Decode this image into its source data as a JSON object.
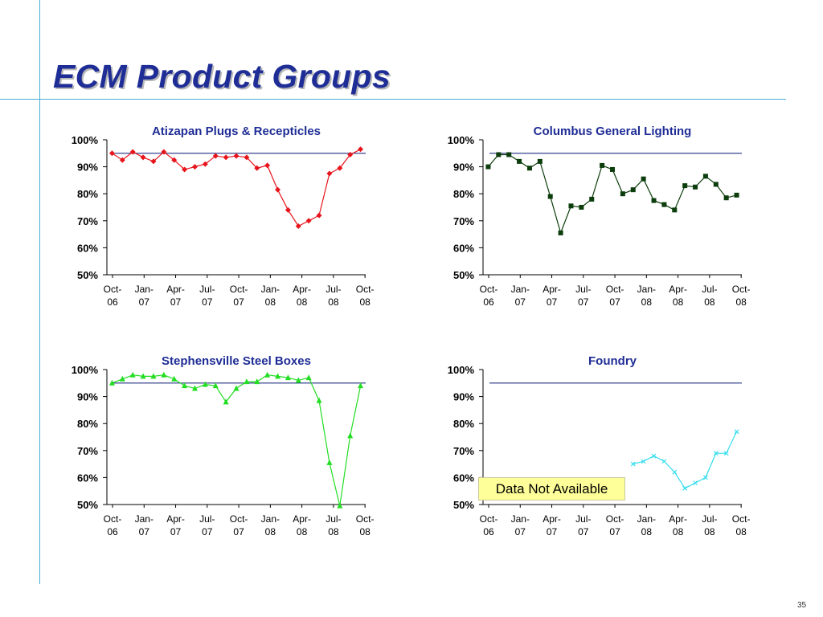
{
  "page": {
    "title": "ECM Product Groups",
    "page_number": "35",
    "overlay_note": "Data Not Available"
  },
  "colors": {
    "accent_lines": "#4aaed9",
    "title": "#1f2d96",
    "target_line": "#1f2d80"
  },
  "chart_data": [
    {
      "type": "line",
      "title": "Atizapan Plugs & Recepticles",
      "series_color": "#e8141c",
      "marker": "diamond",
      "ylim": [
        0.5,
        1.0
      ],
      "yticks": [
        "100%",
        "90%",
        "80%",
        "70%",
        "60%",
        "50%"
      ],
      "xticks": [
        [
          "Oct-",
          "06"
        ],
        [
          "Jan-",
          "07"
        ],
        [
          "Apr-",
          "07"
        ],
        [
          "Jul-",
          "07"
        ],
        [
          "Oct-",
          "07"
        ],
        [
          "Jan-",
          "08"
        ],
        [
          "Apr-",
          "08"
        ],
        [
          "Jul-",
          "08"
        ],
        [
          "Oct-",
          "08"
        ]
      ],
      "target": 0.95,
      "series": [
        {
          "values": [
            0.95,
            0.925,
            0.955,
            0.935,
            0.92,
            0.955,
            0.925,
            0.89,
            0.9,
            0.91,
            0.94,
            0.935,
            0.94,
            0.935,
            0.895,
            0.905,
            0.815,
            0.74,
            0.68,
            0.7,
            0.72,
            0.875,
            0.895,
            0.945,
            0.965
          ]
        }
      ]
    },
    {
      "type": "line",
      "title": "Columbus General Lighting",
      "series_color": "#0c3d0c",
      "marker": "square",
      "ylim": [
        0.5,
        1.0
      ],
      "yticks": [
        "100%",
        "90%",
        "80%",
        "70%",
        "60%",
        "50%"
      ],
      "xticks": [
        [
          "Oct-",
          "06"
        ],
        [
          "Jan-",
          "07"
        ],
        [
          "Apr-",
          "07"
        ],
        [
          "Jul-",
          "07"
        ],
        [
          "Oct-",
          "07"
        ],
        [
          "Jan-",
          "08"
        ],
        [
          "Apr-",
          "08"
        ],
        [
          "Jul-",
          "08"
        ],
        [
          "Oct-",
          "08"
        ]
      ],
      "target": 0.95,
      "series": [
        {
          "values": [
            0.9,
            0.945,
            0.945,
            0.92,
            0.895,
            0.92,
            0.79,
            0.655,
            0.755,
            0.75,
            0.78,
            0.905,
            0.89,
            0.8,
            0.815,
            0.855,
            0.775,
            0.76,
            0.74,
            0.83,
            0.825,
            0.865,
            0.835,
            0.785,
            0.795
          ]
        }
      ]
    },
    {
      "type": "line",
      "title": "Stephensville Steel Boxes",
      "series_color": "#22dd22",
      "marker": "triangle",
      "ylim": [
        0.5,
        1.0
      ],
      "yticks": [
        "100%",
        "90%",
        "80%",
        "70%",
        "60%",
        "50%"
      ],
      "xticks": [
        [
          "Oct-",
          "06"
        ],
        [
          "Jan-",
          "07"
        ],
        [
          "Apr-",
          "07"
        ],
        [
          "Jul-",
          "07"
        ],
        [
          "Oct-",
          "07"
        ],
        [
          "Jan-",
          "08"
        ],
        [
          "Apr-",
          "08"
        ],
        [
          "Jul-",
          "08"
        ],
        [
          "Oct-",
          "08"
        ]
      ],
      "target": 0.95,
      "series": [
        {
          "values": [
            0.95,
            0.965,
            0.98,
            0.975,
            0.975,
            0.98,
            0.965,
            0.94,
            0.93,
            0.945,
            0.94,
            0.88,
            0.93,
            0.955,
            0.955,
            0.98,
            0.975,
            0.97,
            0.96,
            0.97,
            0.885,
            0.655,
            0.495,
            0.755,
            0.94
          ]
        }
      ]
    },
    {
      "type": "line",
      "title": "Foundry",
      "series_color": "#33ddee",
      "marker": "x",
      "ylim": [
        0.5,
        1.0
      ],
      "yticks": [
        "100%",
        "90%",
        "80%",
        "70%",
        "60%",
        "50%"
      ],
      "xticks": [
        [
          "Oct-",
          "06"
        ],
        [
          "Jan-",
          "07"
        ],
        [
          "Apr-",
          "07"
        ],
        [
          "Jul-",
          "07"
        ],
        [
          "Oct-",
          "07"
        ],
        [
          "Jan-",
          "08"
        ],
        [
          "Apr-",
          "08"
        ],
        [
          "Jul-",
          "08"
        ],
        [
          "Oct-",
          "08"
        ]
      ],
      "target": 0.95,
      "series": [
        {
          "values": [
            null,
            null,
            null,
            null,
            null,
            null,
            null,
            null,
            null,
            null,
            null,
            null,
            null,
            null,
            0.65,
            0.66,
            0.68,
            0.66,
            0.62,
            0.56,
            0.58,
            0.6,
            0.69,
            0.69,
            0.77
          ]
        }
      ]
    }
  ]
}
